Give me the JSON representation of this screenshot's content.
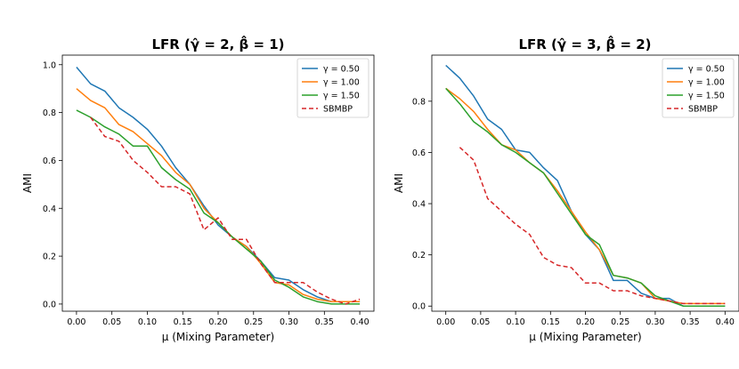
{
  "chart_data": [
    {
      "type": "line",
      "title": "LFR (γ̂ = 2, β̂ = 1)",
      "xlabel": "μ (Mixing Parameter)",
      "ylabel": "AMI",
      "xlim": [
        -0.02,
        0.42
      ],
      "ylim": [
        -0.03,
        1.04
      ],
      "xticks": [
        0.0,
        0.05,
        0.1,
        0.15,
        0.2,
        0.25,
        0.3,
        0.35,
        0.4
      ],
      "xtick_labels": [
        "0.00",
        "0.05",
        "0.10",
        "0.15",
        "0.20",
        "0.25",
        "0.30",
        "0.35",
        "0.40"
      ],
      "yticks": [
        0.0,
        0.2,
        0.4,
        0.6,
        0.8,
        1.0
      ],
      "ytick_labels": [
        "0.0",
        "0.2",
        "0.4",
        "0.6",
        "0.8",
        "1.0"
      ],
      "legend_position": "top-right",
      "series": [
        {
          "name": "γ = 0.50",
          "color": "#1f77b4",
          "dash": "solid",
          "x": [
            0.0,
            0.02,
            0.04,
            0.06,
            0.08,
            0.1,
            0.12,
            0.14,
            0.16,
            0.18,
            0.2,
            0.22,
            0.24,
            0.26,
            0.28,
            0.3,
            0.32,
            0.34,
            0.36,
            0.38,
            0.4
          ],
          "values": [
            0.99,
            0.92,
            0.89,
            0.82,
            0.78,
            0.73,
            0.66,
            0.57,
            0.5,
            0.41,
            0.33,
            0.28,
            0.24,
            0.18,
            0.11,
            0.1,
            0.06,
            0.03,
            0.01,
            0.01,
            0.01
          ]
        },
        {
          "name": "γ = 1.00",
          "color": "#ff7f0e",
          "dash": "solid",
          "x": [
            0.0,
            0.02,
            0.04,
            0.06,
            0.08,
            0.1,
            0.12,
            0.14,
            0.16,
            0.18,
            0.2,
            0.22,
            0.24,
            0.26,
            0.28,
            0.3,
            0.32,
            0.34,
            0.36,
            0.38,
            0.4
          ],
          "values": [
            0.9,
            0.85,
            0.82,
            0.75,
            0.72,
            0.67,
            0.62,
            0.55,
            0.5,
            0.4,
            0.34,
            0.28,
            0.24,
            0.17,
            0.09,
            0.08,
            0.04,
            0.02,
            0.01,
            0.01,
            0.01
          ]
        },
        {
          "name": "γ = 1.50",
          "color": "#2ca02c",
          "dash": "solid",
          "x": [
            0.0,
            0.02,
            0.04,
            0.06,
            0.08,
            0.1,
            0.12,
            0.14,
            0.16,
            0.18,
            0.2,
            0.22,
            0.24,
            0.26,
            0.28,
            0.3,
            0.32,
            0.34,
            0.36,
            0.38,
            0.4
          ],
          "values": [
            0.81,
            0.78,
            0.74,
            0.71,
            0.66,
            0.66,
            0.57,
            0.52,
            0.48,
            0.38,
            0.34,
            0.28,
            0.23,
            0.18,
            0.1,
            0.07,
            0.03,
            0.01,
            0.0,
            0.0,
            0.0
          ]
        },
        {
          "name": "SBMBP",
          "color": "#d62728",
          "dash": "dashed",
          "x": [
            0.02,
            0.04,
            0.06,
            0.08,
            0.1,
            0.12,
            0.14,
            0.16,
            0.18,
            0.2,
            0.22,
            0.24,
            0.26,
            0.28,
            0.3,
            0.32,
            0.34,
            0.36,
            0.38,
            0.4
          ],
          "values": [
            0.78,
            0.7,
            0.68,
            0.6,
            0.55,
            0.49,
            0.49,
            0.46,
            0.31,
            0.36,
            0.27,
            0.27,
            0.17,
            0.09,
            0.09,
            0.09,
            0.05,
            0.02,
            0.0,
            0.02
          ]
        }
      ]
    },
    {
      "type": "line",
      "title": "LFR (γ̂ = 3, β̂ = 2)",
      "xlabel": "μ (Mixing Parameter)",
      "ylabel": "AMI",
      "xlim": [
        -0.02,
        0.42
      ],
      "ylim": [
        -0.02,
        0.98
      ],
      "xticks": [
        0.0,
        0.05,
        0.1,
        0.15,
        0.2,
        0.25,
        0.3,
        0.35,
        0.4
      ],
      "xtick_labels": [
        "0.00",
        "0.05",
        "0.10",
        "0.15",
        "0.20",
        "0.25",
        "0.30",
        "0.35",
        "0.40"
      ],
      "yticks": [
        0.0,
        0.2,
        0.4,
        0.6,
        0.8
      ],
      "ytick_labels": [
        "0.0",
        "0.2",
        "0.4",
        "0.6",
        "0.8"
      ],
      "legend_position": "top-right",
      "series": [
        {
          "name": "γ = 0.50",
          "color": "#1f77b4",
          "dash": "solid",
          "x": [
            0.0,
            0.02,
            0.04,
            0.06,
            0.08,
            0.1,
            0.12,
            0.14,
            0.16,
            0.18,
            0.2,
            0.22,
            0.24,
            0.26,
            0.28,
            0.3,
            0.32,
            0.34,
            0.36,
            0.38,
            0.4
          ],
          "values": [
            0.94,
            0.89,
            0.82,
            0.73,
            0.69,
            0.61,
            0.6,
            0.54,
            0.49,
            0.37,
            0.28,
            0.22,
            0.1,
            0.1,
            0.05,
            0.03,
            0.03,
            0.0,
            0.0,
            0.0,
            0.0
          ]
        },
        {
          "name": "γ = 1.00",
          "color": "#ff7f0e",
          "dash": "solid",
          "x": [
            0.0,
            0.02,
            0.04,
            0.06,
            0.08,
            0.1,
            0.12,
            0.14,
            0.16,
            0.18,
            0.2,
            0.22,
            0.24,
            0.26,
            0.28,
            0.3,
            0.32,
            0.34,
            0.36,
            0.38,
            0.4
          ],
          "values": [
            0.85,
            0.81,
            0.76,
            0.69,
            0.63,
            0.61,
            0.56,
            0.52,
            0.45,
            0.37,
            0.29,
            0.22,
            0.12,
            0.11,
            0.09,
            0.03,
            0.02,
            0.01,
            0.01,
            0.01,
            0.01
          ]
        },
        {
          "name": "γ = 1.50",
          "color": "#2ca02c",
          "dash": "solid",
          "x": [
            0.0,
            0.02,
            0.04,
            0.06,
            0.08,
            0.1,
            0.12,
            0.14,
            0.16,
            0.18,
            0.2,
            0.22,
            0.24,
            0.26,
            0.28,
            0.3,
            0.32,
            0.34,
            0.36,
            0.38,
            0.4
          ],
          "values": [
            0.85,
            0.79,
            0.72,
            0.68,
            0.63,
            0.6,
            0.56,
            0.52,
            0.44,
            0.36,
            0.28,
            0.24,
            0.12,
            0.11,
            0.09,
            0.04,
            0.02,
            0.0,
            0.0,
            0.0,
            0.0
          ]
        },
        {
          "name": "SBMBP",
          "color": "#d62728",
          "dash": "dashed",
          "x": [
            0.02,
            0.04,
            0.06,
            0.08,
            0.1,
            0.12,
            0.14,
            0.16,
            0.18,
            0.2,
            0.22,
            0.24,
            0.26,
            0.28,
            0.3,
            0.32,
            0.34,
            0.36,
            0.38,
            0.4
          ],
          "values": [
            0.62,
            0.57,
            0.42,
            0.37,
            0.32,
            0.28,
            0.19,
            0.16,
            0.15,
            0.09,
            0.09,
            0.06,
            0.06,
            0.04,
            0.03,
            0.02,
            0.01,
            0.01,
            0.01,
            0.01
          ]
        }
      ]
    }
  ]
}
